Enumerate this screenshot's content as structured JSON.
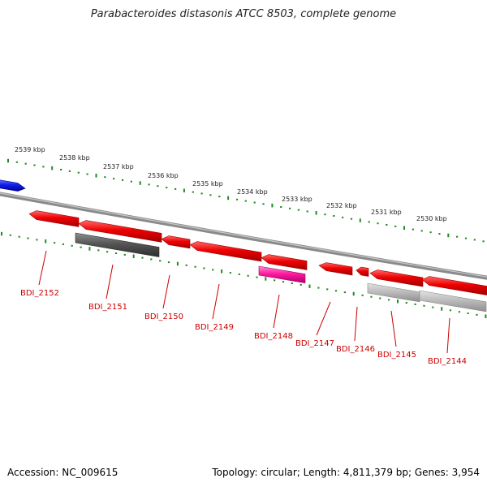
{
  "title": "Parabacteroides distasonis ATCC 8503, complete genome",
  "footer": {
    "accession": "Accession: NC_009615",
    "summary": "Topology: circular; Length: 4,811,379 bp; Genes: 3,954"
  },
  "colors": {
    "forward_gene": "#0000ff",
    "reverse_gene": "#ff0000",
    "rna_gene": "#ff1493",
    "dark_feature": "#555555",
    "light_feature": "#bbbbbb",
    "backbone": "#888888",
    "ruler": "#228b22",
    "label": "#cc0000"
  },
  "ruler_labels": [
    "2539 kbp",
    "2538 kbp",
    "2537 kbp",
    "2536 kbp",
    "2535 kbp",
    "2534 kbp",
    "2533 kbp",
    "2532 kbp",
    "2531 kbp",
    "2530 kbp"
  ],
  "gene_labels": [
    "BDI_2152",
    "BDI_2151",
    "BDI_2150",
    "BDI_2149",
    "BDI_2148",
    "BDI_2147",
    "BDI_2146",
    "BDI_2145",
    "BDI_2144"
  ]
}
